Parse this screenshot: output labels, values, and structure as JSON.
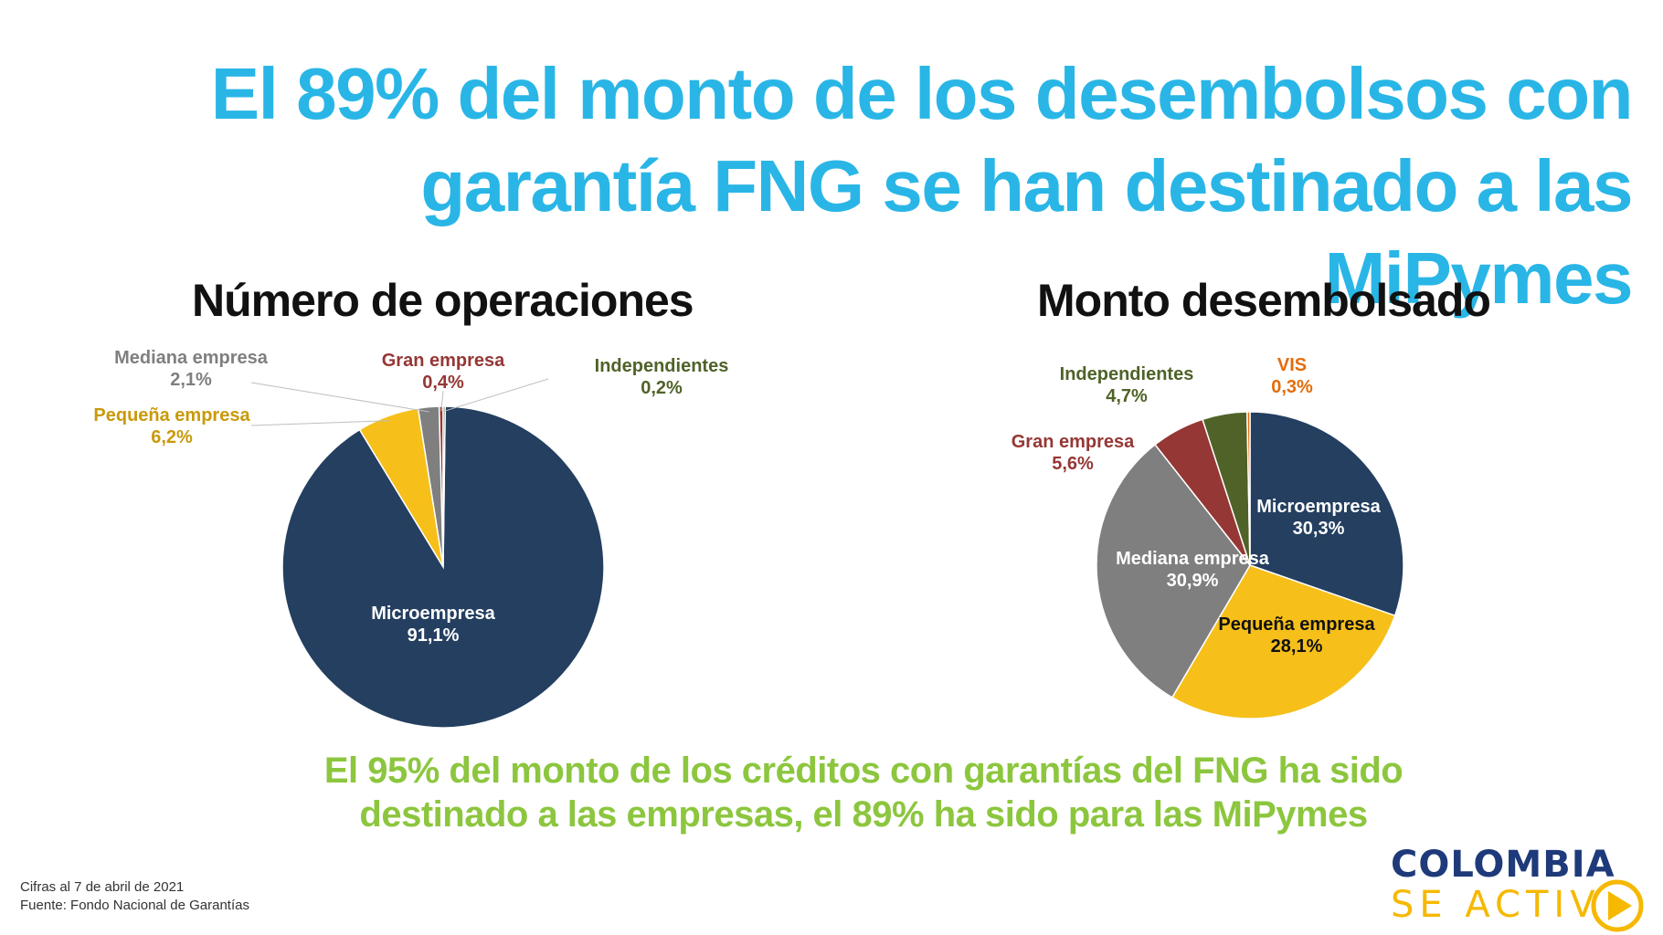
{
  "title": {
    "line1": "El 89% del monto de los desembolsos con",
    "line2": "garantía FNG se han destinado a las MiPymes"
  },
  "subtitle": {
    "line1": "El 95% del monto de los créditos con garantías del FNG ha sido",
    "line2": "destinado a las empresas, el 89% ha sido para las MiPymes"
  },
  "footnote": {
    "line1": "Cifras al 7 de abril de 2021",
    "line2": "Fuente: Fondo Nacional de Garantías"
  },
  "logo": {
    "line1": "COLOMBIA",
    "line2": "SE ACTIV",
    "colors": {
      "primary": "#1e3a7a",
      "accent": "#f6b800"
    }
  },
  "colors": {
    "title": "#29b6e6",
    "subtitle": "#8cc63e"
  },
  "chart_data": [
    {
      "type": "pie",
      "title": "Número de operaciones",
      "series": [
        {
          "name": "Microempresa",
          "value": 91.1,
          "label": "91,1%",
          "color": "#243f60"
        },
        {
          "name": "Pequeña empresa",
          "value": 6.2,
          "label": "6,2%",
          "color": "#f6bf1a"
        },
        {
          "name": "Mediana empresa",
          "value": 2.1,
          "label": "2,1%",
          "color": "#7f7f7f"
        },
        {
          "name": "Gran empresa",
          "value": 0.4,
          "label": "0,4%",
          "color": "#953735"
        },
        {
          "name": "Independientes",
          "value": 0.2,
          "label": "0,2%",
          "color": "#4f6228"
        }
      ]
    },
    {
      "type": "pie",
      "title": "Monto desembolsado",
      "series": [
        {
          "name": "Microempresa",
          "value": 30.3,
          "label": "30,3%",
          "color": "#243f60"
        },
        {
          "name": "Pequeña empresa",
          "value": 28.1,
          "label": "28,1%",
          "color": "#f6bf1a"
        },
        {
          "name": "Mediana empresa",
          "value": 30.9,
          "label": "30,9%",
          "color": "#7f7f7f"
        },
        {
          "name": "Gran empresa",
          "value": 5.6,
          "label": "5,6%",
          "color": "#953735"
        },
        {
          "name": "Independientes",
          "value": 4.7,
          "label": "4,7%",
          "color": "#4f6228"
        },
        {
          "name": "VIS",
          "value": 0.3,
          "label": "0,3%",
          "color": "#e46c0a"
        }
      ]
    }
  ]
}
